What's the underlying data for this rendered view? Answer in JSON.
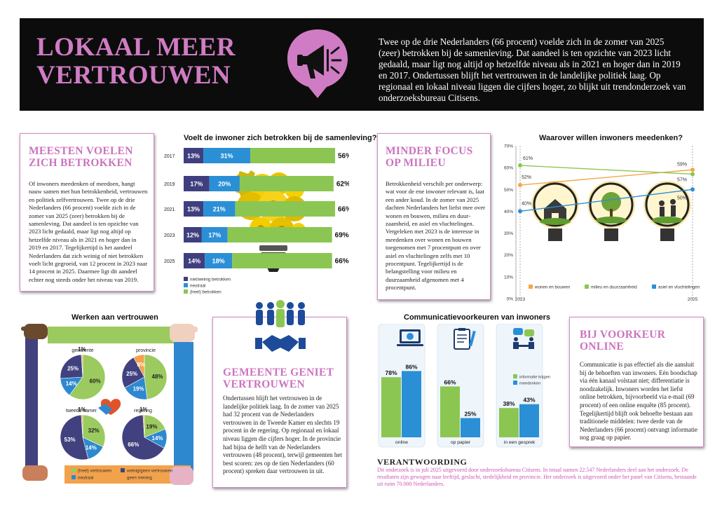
{
  "title": "LOKAAL MEER VERTROUWEN",
  "title_lines": [
    "LOKAAL MEER",
    "VERTROUWEN"
  ],
  "intro": "Twee op de drie Nederlanders (66 procent) voelde zich in de zomer van 2025 (zeer) betrokken bij de samenleving. Dat aandeel is ten opzichte van 2023 licht gedaald, maar ligt nog altijd op hetzelfde niveau als in 2021 en hoger dan in 2019 en 2017. Onder­tussen blijft het vertrouwen in de landelijke politiek laag. Op regionaal en lokaal niveau liggen die cijfers hoger, zo blijkt uit trendonderzoek van onderzoeksbureau Citisens.",
  "colors": {
    "purple": "#3f3f7f",
    "blue": "#2b8fd6",
    "green": "#8cc652",
    "orange": "#f4a64a",
    "pink": "#cc73bf",
    "pie_purple": "#42417f",
    "pie_blue": "#2e88cf",
    "pie_green": "#9bca5f",
    "pie_orange": "#f3a24c"
  },
  "icons": {
    "header": "megaphone-bubble-icon",
    "bulb": "gears-lightbulb-icon",
    "people": "people-group-icon",
    "handshake": "handshake-icon",
    "heart_hands": "heart-hands-icon",
    "laptop": "laptop-globe-icon",
    "paper": "clipboard-icon",
    "conversation": "conversation-icon"
  },
  "card_betrokken": {
    "title": "MEESTEN VOELEN ZICH BETROKKEN",
    "text": "Of inwoners meedenken of meedoen, hangt nauw samen met hun betrokkenheid, vertrouwen en politiek zelfvertrouwen. Twee op de drie Nederlanders (66 procent) voelde zich in de zomer van 2025 (zeer) betrokken bij de samenleving. Dat aandeel is ten opzichte van 2023 licht gedaald, maar ligt nog altijd op hetzelfde niveau als in 2021 en hoger dan in 2019 en 2017. Tegelijkertijd is het aandeel Nederlanders dat zich weinig of niet betrokken voelt licht gegroeid, van 12 procent in 2023 naar 14 procent in 2025. Daarmee ligt dit aandeel echter nog steeds onder het niveau van 2019."
  },
  "card_milieu": {
    "title": "MINDER FOCUS OP MILIEU",
    "text": "Betrokkenheid verschilt per onderwerp: wat voor de ene inwoner relevant is, laat een ander koud. In de zomer van 2025 dachten Nederlanders het liefst mee over wonen en bouwen, milieu en duur­zaamheid, en asiel en vluchtelingen. Vergeleken met 2023 is de interesse in meedenken over wonen en bou­wen toegenomen met 7 procentpunt en over asiel en vluchtelingen zelfs met 10 procentpunt. Tegelijkertijd is de belangstelling voor milieu en duurzaamheid afgenomen met 4 procentpunt."
  },
  "card_gemeente": {
    "title": "GEMEENTE GENIET VERTROUWEN",
    "text": "Ondertussen blijft het vertrouwen in de landelijke politiek laag. In de zomer van 2025 had 32 procent van de Nederlanders vertrouwen in de Tweede Kamer en slechts 19 procent in de regering. Op regionaal en lokaal niveau liggen die cijfers hoger. In de provincie had bijna de helft van de Nederlanders vertrouwen (48 procent), terwijl gemeenten het best scoren: zes op de tien Nederlanders (60 procent) spreken daar vertrouwen in uit."
  },
  "card_online": {
    "title": "BIJ VOORKEUR ONLINE",
    "text": "Communicatie is pas effectief als die aansluit bij de behoeften van inwoners. Eén boodschap via één kanaal volstaat niet; differentiatie is noodzakelijk. Inwoners worden het liefst online betrokken, bijvoorbeeld via e-mail (69 procent) of een online enquête (85 procent). Tegelijkertijd blijft ook behoefte bestaan aan traditionele middelen: twee derde van de Nederlanders (66 procent) ontvangt informatie nog graag op papier."
  },
  "footer": {
    "title": "VERANTWOORDING",
    "text": "Dit onderzoek is in juli 2025 uitgevoerd door onderzoeksbureau Citisens. In totaal namen 22.547 Nederlanders deel aan het onderzoek. De resultaten zijn gewogen naar leeftijd, geslacht, stedelijkheid en provincie. Het onderzoek is uitgevoerd onder het panel van Citisens, bestaande uit ruim 70.000 Nederlanders."
  },
  "chart_data": [
    {
      "type": "bar",
      "stacked": true,
      "orientation": "horizontal",
      "title": "Voelt de inwoner zich betrokken bij de samenleving?",
      "categories": [
        "2017",
        "2019",
        "2021",
        "2023",
        "2025"
      ],
      "series": [
        {
          "name": "niet/weinig betrokken",
          "values": [
            13,
            17,
            13,
            12,
            14
          ],
          "labels": [
            "13%",
            "17%",
            "13%",
            "12%",
            "14%"
          ],
          "color": "#3f3f7f"
        },
        {
          "name": "neutraal",
          "values": [
            31,
            20,
            21,
            17,
            18
          ],
          "labels": [
            "31%",
            "20%",
            "21%",
            "17%",
            "18%"
          ],
          "color": "#2b8fd6"
        },
        {
          "name": "(heel) betrokken",
          "values": [
            56,
            62,
            66,
            69,
            66
          ],
          "labels": [
            "56%",
            "62%",
            "66%",
            "69%",
            "66%"
          ],
          "color": "#8cc652"
        }
      ],
      "legend": [
        "niet/weinig betrokken",
        "neutraal",
        "(heel) betrokken"
      ],
      "legend_position": "bottom-left"
    },
    {
      "type": "line",
      "title": "Waarover willen inwoners meedenken?",
      "x": [
        "2023",
        "2025"
      ],
      "ylim": [
        0,
        70
      ],
      "yticks": [
        "0%",
        "10%",
        "20%",
        "30%",
        "40%",
        "50%",
        "60%",
        "70%"
      ],
      "grid": false,
      "series": [
        {
          "name": "wonen en bouwen",
          "values": [
            52,
            59
          ],
          "labels": [
            "52%",
            "59%"
          ],
          "color": "#f4a64a"
        },
        {
          "name": "milieu en duurzaamheid",
          "values": [
            61,
            57
          ],
          "labels": [
            "61%",
            "57%"
          ],
          "color": "#8cc652"
        },
        {
          "name": "asiel en vluchtelingen",
          "values": [
            40,
            50
          ],
          "labels": [
            "40%",
            "50%"
          ],
          "color": "#2b8fd6"
        }
      ],
      "legend_position": "bottom"
    },
    {
      "type": "pie",
      "title": "Werken aan vertrouwen",
      "legend": [
        "(heel) vertrouwen",
        "neutraal",
        "weinig/geen vertrouwen",
        "geen mening"
      ],
      "legend_colors": [
        "#9bca5f",
        "#2e88cf",
        "#42417f",
        "#f3a24c"
      ],
      "pies": [
        {
          "name": "gemeente",
          "values": [
            60,
            14,
            25,
            1
          ],
          "labels": [
            "60%",
            "14%",
            "25%",
            "1%"
          ]
        },
        {
          "name": "provincie",
          "values": [
            48,
            19,
            25,
            8
          ],
          "labels": [
            "48%",
            "19%",
            "25%",
            "8%"
          ]
        },
        {
          "name": "tweede kamer",
          "values": [
            32,
            14,
            53,
            1
          ],
          "labels": [
            "32%",
            "14%",
            "53%",
            "1%"
          ]
        },
        {
          "name": "regering",
          "values": [
            19,
            14,
            66,
            1
          ],
          "labels": [
            "19%",
            "14%",
            "66%",
            "1%"
          ]
        }
      ]
    },
    {
      "type": "bar",
      "title": "Communicatievoorkeuren van inwoners",
      "categories": [
        "online",
        "op papier",
        "in een gesprek"
      ],
      "series": [
        {
          "name": "informatie krijgen",
          "values": [
            78,
            66,
            38
          ],
          "labels": [
            "78%",
            "66%",
            "38%"
          ],
          "color": "#8cc652"
        },
        {
          "name": "meedenken",
          "values": [
            86,
            25,
            43
          ],
          "labels": [
            "86%",
            "25%",
            "43%"
          ],
          "color": "#2b8fd6"
        }
      ],
      "legend_position": "right-of-third-bar"
    }
  ]
}
